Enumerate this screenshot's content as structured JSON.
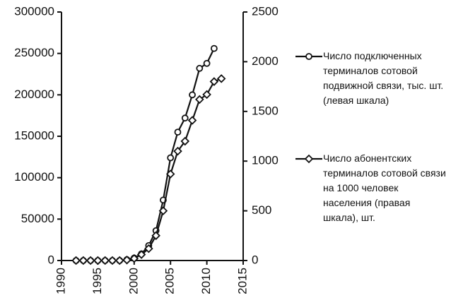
{
  "chart_data": {
    "type": "line",
    "x": [
      1992,
      1993,
      1994,
      1995,
      1996,
      1997,
      1998,
      1999,
      2000,
      2001,
      2002,
      2003,
      2004,
      2005,
      2006,
      2007,
      2008,
      2009,
      2010,
      2011,
      2012
    ],
    "series": [
      {
        "name": "Число подключенных терминалов сотовой подвижной связи, тыс. шт. (левая шкала)",
        "color": "#111111",
        "marker": "circle",
        "values": [
          0,
          0,
          0,
          0,
          0,
          0,
          0,
          1000,
          3000,
          8000,
          18000,
          36000,
          73000,
          124000,
          155000,
          172000,
          200000,
          232000,
          238000,
          256000,
          null
        ]
      },
      {
        "name": "Число абонентских терминалов сотовой связи на 1000 человек населения (правая шкала), шт.",
        "color": "#111111",
        "marker": "diamond",
        "axis": "y2",
        "values": [
          0,
          0,
          0,
          0,
          0,
          0,
          0,
          5,
          20,
          60,
          120,
          250,
          500,
          870,
          1100,
          1200,
          1410,
          1620,
          1670,
          1800,
          1830
        ]
      }
    ],
    "xlim": [
      1990,
      2015
    ],
    "xticks": [
      1990,
      1995,
      2000,
      2005,
      2010,
      2015
    ],
    "ylim": [
      0,
      300000
    ],
    "yticks": [
      0,
      50000,
      100000,
      150000,
      200000,
      250000,
      300000
    ],
    "y2lim": [
      0,
      2500
    ],
    "y2ticks": [
      0,
      500,
      1000,
      1500,
      2000,
      2500
    ],
    "legend": "right"
  }
}
